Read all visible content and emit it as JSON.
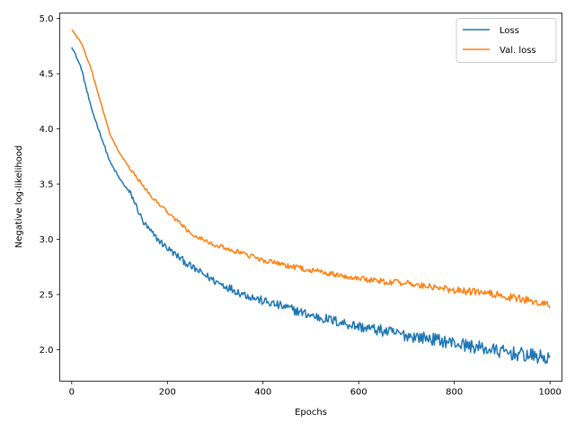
{
  "chart_data": {
    "type": "line",
    "title": "",
    "xlabel": "Epochs",
    "ylabel": "Negative log-likelihood",
    "xlim": [
      -25,
      1025
    ],
    "ylim": [
      1.715,
      5.05
    ],
    "xticks": [
      0,
      200,
      400,
      600,
      800,
      1000
    ],
    "yticks": [
      2.0,
      2.5,
      3.0,
      3.5,
      4.0,
      4.5,
      5.0
    ],
    "xtick_labels": [
      "0",
      "200",
      "400",
      "600",
      "800",
      "1000"
    ],
    "ytick_labels": [
      "2.0",
      "2.5",
      "3.0",
      "3.5",
      "4.0",
      "4.5",
      "5.0"
    ],
    "grid": false,
    "legend": {
      "placement": "top-right"
    },
    "series": [
      {
        "name": "Loss",
        "color": "#1f77b4",
        "noise": 0.045,
        "x": [
          0,
          20,
          40,
          60,
          80,
          100,
          125,
          150,
          175,
          200,
          250,
          300,
          350,
          400,
          450,
          500,
          550,
          600,
          650,
          700,
          750,
          800,
          850,
          900,
          950,
          1000
        ],
        "y": [
          4.75,
          4.55,
          4.2,
          3.95,
          3.7,
          3.55,
          3.4,
          3.15,
          3.02,
          2.92,
          2.75,
          2.62,
          2.52,
          2.44,
          2.38,
          2.31,
          2.26,
          2.21,
          2.17,
          2.13,
          2.1,
          2.06,
          2.02,
          1.98,
          1.95,
          1.92
        ]
      },
      {
        "name": "Val. loss",
        "color": "#ff7f0e",
        "noise": 0.025,
        "x": [
          0,
          20,
          40,
          60,
          80,
          100,
          125,
          150,
          175,
          200,
          250,
          300,
          350,
          400,
          450,
          500,
          550,
          600,
          650,
          700,
          750,
          800,
          850,
          900,
          950,
          1000
        ],
        "y": [
          4.9,
          4.78,
          4.55,
          4.25,
          3.95,
          3.78,
          3.62,
          3.48,
          3.35,
          3.25,
          3.05,
          2.95,
          2.88,
          2.81,
          2.76,
          2.72,
          2.68,
          2.65,
          2.62,
          2.6,
          2.57,
          2.54,
          2.52,
          2.49,
          2.45,
          2.4
        ]
      }
    ]
  }
}
